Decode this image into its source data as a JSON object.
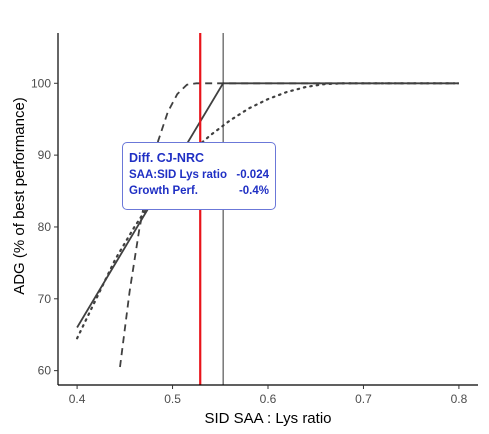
{
  "chart_data": {
    "type": "line",
    "title": "",
    "xlabel": "SID SAA : Lys ratio",
    "ylabel": "ADG (% of best performance)",
    "xlim": [
      0.38,
      0.82
    ],
    "ylim": [
      58,
      107
    ],
    "xticks": [
      "0.4",
      "0.5",
      "0.6",
      "0.7",
      "0.8"
    ],
    "yticks": [
      "60",
      "70",
      "80",
      "90",
      "100"
    ],
    "grid": false,
    "series": [
      {
        "style": "solid",
        "color": "#404040",
        "x": [
          0.4,
          0.553,
          0.8
        ],
        "y": [
          66.0,
          100.0,
          100.0
        ]
      },
      {
        "style": "dashed",
        "color": "#404040",
        "x": [
          0.445,
          0.455,
          0.465,
          0.475,
          0.485,
          0.495,
          0.505,
          0.515,
          0.525,
          0.535,
          0.545,
          0.553,
          0.6,
          0.7,
          0.8
        ],
        "y": [
          60.5,
          71.0,
          79.5,
          86.5,
          92.0,
          96.0,
          98.5,
          99.8,
          100.0,
          100.0,
          100.0,
          100.0,
          100.0,
          100.0,
          100.0
        ]
      },
      {
        "style": "dotted",
        "color": "#404040",
        "x": [
          0.4,
          0.42,
          0.44,
          0.46,
          0.48,
          0.5,
          0.52,
          0.54,
          0.56,
          0.58,
          0.6,
          0.62,
          0.64,
          0.66,
          0.68,
          0.7,
          0.8
        ],
        "y": [
          64.5,
          70.0,
          75.5,
          80.0,
          84.0,
          87.5,
          90.5,
          92.8,
          94.8,
          96.5,
          97.8,
          98.8,
          99.5,
          99.9,
          100.0,
          100.0,
          100.0
        ]
      }
    ],
    "vlines": [
      {
        "x": 0.529,
        "color": "#e8141b",
        "width": 2.2
      },
      {
        "x": 0.553,
        "color": "#333333",
        "width": 1
      }
    ],
    "annotation": {
      "title": "Diff. CJ-NRC",
      "rows": [
        {
          "label": "SAA:SID Lys ratio",
          "value": "-0.024"
        },
        {
          "label": "Growth Perf.",
          "value": "-0.4%"
        }
      ],
      "color": "#1f2fc4",
      "border": "#6b78d8"
    }
  }
}
